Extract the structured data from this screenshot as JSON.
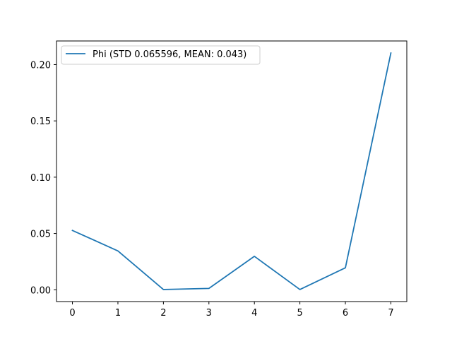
{
  "chart_data": {
    "type": "line",
    "title": "",
    "xlabel": "",
    "ylabel": "",
    "x": [
      0,
      1,
      2,
      3,
      4,
      5,
      6,
      7
    ],
    "series": [
      {
        "name": "Phi (STD 0.065596, MEAN: 0.043)",
        "color": "#1f77b4",
        "values": [
          0.0527,
          0.0345,
          0.0002,
          0.0012,
          0.0297,
          0.0002,
          0.0195,
          0.2103
        ]
      }
    ],
    "xlim": [
      -0.35,
      7.35
    ],
    "ylim": [
      -0.0105,
      0.221
    ],
    "xticks": [
      0,
      1,
      2,
      3,
      4,
      5,
      6,
      7
    ],
    "xtick_labels": [
      "0",
      "1",
      "2",
      "3",
      "4",
      "5",
      "6",
      "7"
    ],
    "yticks": [
      0.0,
      0.05,
      0.1,
      0.15,
      0.2
    ],
    "ytick_labels": [
      "0.00",
      "0.05",
      "0.10",
      "0.15",
      "0.20"
    ],
    "grid": false,
    "legend_position": "top-left"
  }
}
